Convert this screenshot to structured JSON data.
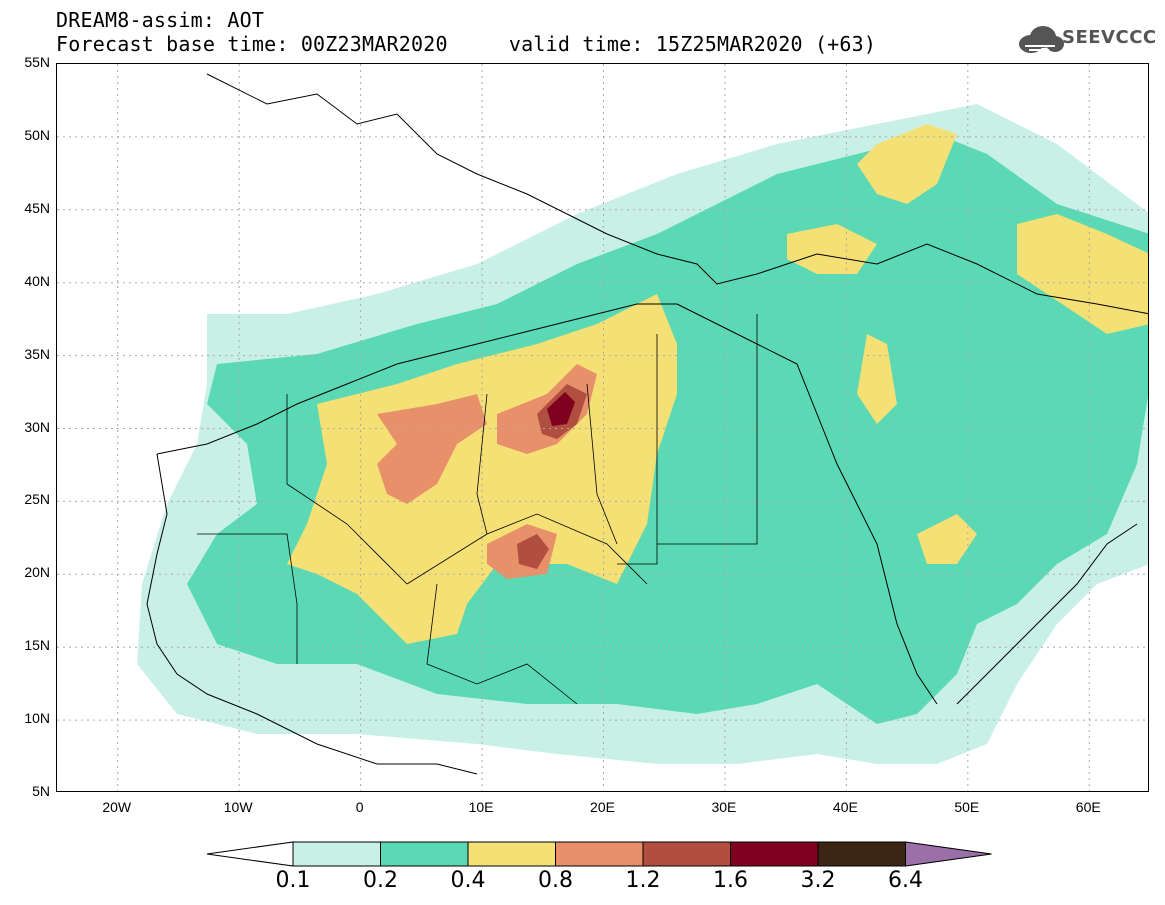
{
  "title": {
    "line1": "DREAM8-assim: AOT",
    "line2": "Forecast base time: 00Z23MAR2020     valid time: 15Z25MAR2020 (+63)"
  },
  "logo": {
    "text": "SEEVCCC",
    "icon": "cloud-icon"
  },
  "map": {
    "type": "filled-contour-map",
    "extent": {
      "lon": [
        -25,
        65
      ],
      "lat": [
        5,
        55
      ]
    },
    "grid": true,
    "lat_labels": [
      "55N",
      "50N",
      "45N",
      "40N",
      "35N",
      "30N",
      "25N",
      "20N",
      "15N",
      "10N",
      "5N"
    ],
    "lon_labels": [
      "20W",
      "10W",
      "0",
      "10E",
      "20E",
      "30E",
      "40E",
      "50E",
      "60E"
    ]
  },
  "colorbar": {
    "labels": [
      "0.1",
      "0.2",
      "0.4",
      "0.8",
      "1.2",
      "1.6",
      "3.2",
      "6.4"
    ],
    "colors": [
      "#ffffff",
      "#c8f0e6",
      "#5ad9b4",
      "#f5e076",
      "#e8906a",
      "#b04e40",
      "#800020",
      "#3d2515",
      "#9b70a8"
    ]
  }
}
